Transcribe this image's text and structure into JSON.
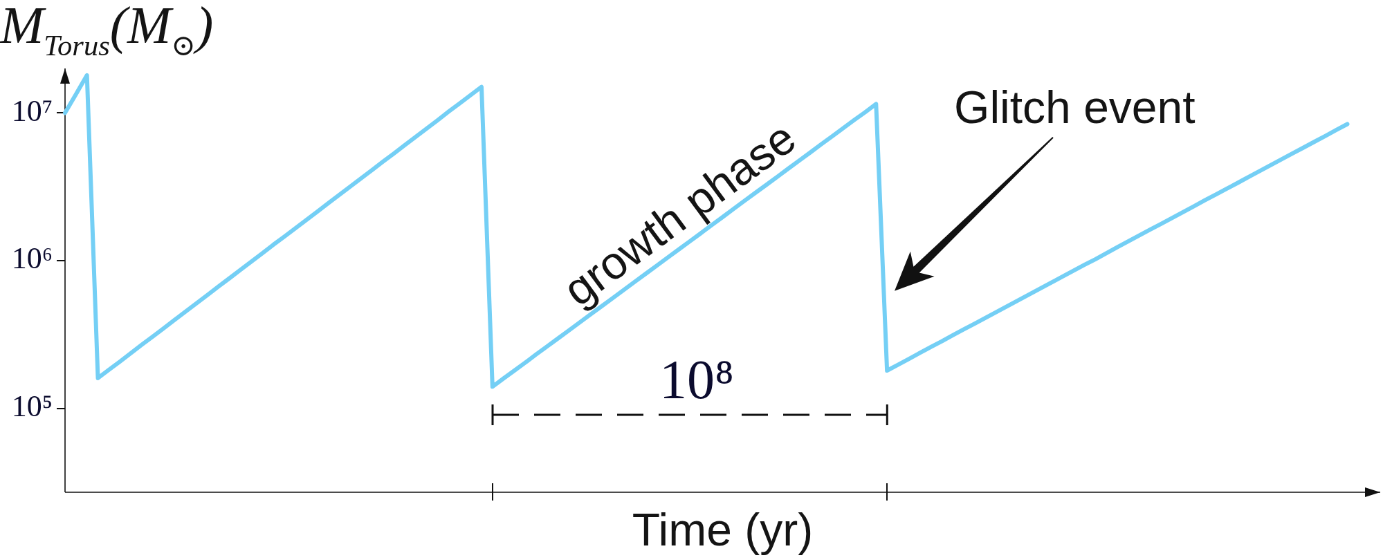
{
  "chart_data": {
    "type": "line",
    "xlabel": "Time (yr)",
    "ylabel": "M$_{Torus}$(M$_{⊙}$)",
    "categories": [
      null,
      null,
      null,
      null,
      null,
      null,
      null,
      null,
      null,
      null,
      null,
      null,
      null,
      null,
      null,
      null,
      null,
      null,
      null,
      null,
      null,
      null,
      null,
      null,
      null,
      null,
      null,
      null,
      null,
      null,
      null,
      null,
      null,
      null,
      null,
      null,
      null,
      null,
      null,
      null,
      null,
      null,
      null,
      null,
      null,
      null,
      null,
      null,
      null,
      null,
      null,
      null,
      null,
      null,
      null,
      null,
      null,
      null,
      null,
      null,
      null,
      null,
      null,
      null,
      null,
      null,
      null,
      null,
      null,
      null,
      null,
      null,
      null,
      null,
      null,
      null,
      null,
      null,
      null,
      null,
      null,
      null,
      null,
      null,
      null,
      null,
      null,
      null,
      null,
      null,
      null,
      null,
      null,
      null,
      null,
      null,
      null,
      null,
      null,
      null,
      null,
      null,
      null,
      null,
      null,
      null,
      null,
      null,
      null,
      null,
      null,
      null,
      null,
      null,
      null,
      null,
      null,
      null,
      null,
      null,
      null
    ],
    "values": [
      10000000,
      13400000,
      18000000,
      160000,
      182000,
      207000,
      236000,
      269000,
      306000,
      348000,
      397000,
      452000,
      514000,
      585000,
      667000,
      759000,
      864000,
      984000,
      1120000,
      1280000,
      1450000,
      1650000,
      1880000,
      2140000,
      2440000,
      2780000,
      3160000,
      3600000,
      4100000,
      4670000,
      5310000,
      6050000,
      6890000,
      7840000,
      8930000,
      10200000,
      11600000,
      13200000,
      15000000,
      140000,
      159000,
      180000,
      204000,
      232000,
      263000,
      298000,
      338000,
      383000,
      435000,
      493000,
      559000,
      635000,
      720000,
      816000,
      926000,
      1050000,
      1190000,
      1350000,
      1530000,
      1740000,
      1970000,
      2240000,
      2540000,
      2880000,
      3260000,
      3700000,
      4200000,
      4760000,
      5400000,
      6130000,
      6950000,
      7880000,
      8940000,
      10100000,
      11500000,
      180000,
      197000,
      216000,
      237000,
      260000,
      284000,
      312000,
      342000,
      374000,
      410000,
      449000,
      493000,
      540000,
      591000,
      648000,
      710000,
      778000,
      853000,
      935000,
      1020000,
      1120000,
      1230000,
      1350000,
      1480000,
      1620000,
      1770000,
      1940000,
      2130000,
      2330000,
      2560000,
      2800000,
      3070000,
      3360000,
      3690000,
      4040000,
      4430000,
      4850000,
      5320000,
      5820000,
      6380000,
      6990000,
      7670000,
      8400000,
      null,
      null,
      null
    ],
    "color": "#74cff5",
    "ylim": [
      27000,
      20000000
    ],
    "yticks": [
      {
        "value": 100000,
        "label": "10⁵"
      },
      {
        "value": 1000000,
        "label": "10⁶"
      },
      {
        "value": 10000000,
        "label": "10⁷"
      }
    ],
    "log": true,
    "marker": "none",
    "annotations": [
      "10⁸",
      {
        "text": "growth phase",
        "y": 1200000
      },
      "Glitch event"
    ]
  }
}
